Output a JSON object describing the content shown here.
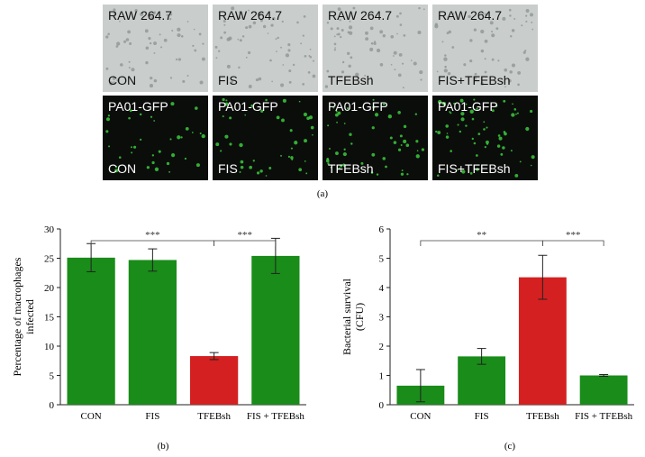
{
  "panels": {
    "caption": "(a)",
    "rows": [
      {
        "stain": "RAW 264.7",
        "labels": [
          "CON",
          "FIS",
          "TFEBsh",
          "FIS+TFEBsh"
        ]
      },
      {
        "stain": "PA01-GFP",
        "labels": [
          "CON",
          "FIS",
          "TFEBsh",
          "FIS+TFEBsh"
        ]
      }
    ]
  },
  "chart_data": [
    {
      "type": "bar",
      "caption": "(b)",
      "ylabel": [
        "Percentage of macrophages",
        "infected"
      ],
      "categories": [
        "CON",
        "FIS",
        "TFEBsh",
        "FIS + TFEBsh"
      ],
      "values": [
        25.1,
        24.7,
        8.3,
        25.4
      ],
      "errors": [
        2.4,
        1.9,
        0.6,
        3.0
      ],
      "colors": [
        "#198c19",
        "#198c19",
        "#d42020",
        "#198c19"
      ],
      "ylim": [
        0,
        30
      ],
      "yticks": [
        0,
        5,
        10,
        15,
        20,
        25,
        30
      ],
      "significance": [
        {
          "from": "CON",
          "to": "TFEBsh",
          "label": "***"
        },
        {
          "from": "TFEBsh",
          "to": "FIS + TFEBsh",
          "label": "***"
        }
      ]
    },
    {
      "type": "bar",
      "caption": "(c)",
      "ylabel": [
        "Bacterial survival",
        "(CFU)"
      ],
      "categories": [
        "CON",
        "FIS",
        "TFEBsh",
        "FIS + TFEBsh"
      ],
      "values": [
        0.65,
        1.65,
        4.35,
        1.0
      ],
      "errors": [
        0.55,
        0.27,
        0.75,
        0.03
      ],
      "colors": [
        "#198c19",
        "#198c19",
        "#d42020",
        "#198c19"
      ],
      "ylim": [
        0,
        6
      ],
      "yticks": [
        0,
        1,
        2,
        3,
        4,
        5,
        6
      ],
      "significance": [
        {
          "from": "CON",
          "to": "TFEBsh",
          "label": "**"
        },
        {
          "from": "TFEBsh",
          "to": "FIS + TFEBsh",
          "label": "***"
        }
      ]
    }
  ]
}
